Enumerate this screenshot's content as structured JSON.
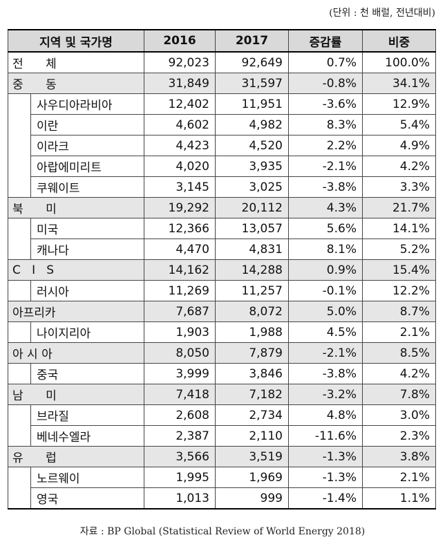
{
  "unit_note": "(단위 : 천 배럴, 전년대비)",
  "headers": [
    "지역 및 국가명",
    "2016",
    "2017",
    "증감률",
    "비중"
  ],
  "total": {
    "name": "전      체",
    "v2016": "92,023",
    "v2017": "92,649",
    "change": "0.7%",
    "share": "100.0%"
  },
  "regions": [
    {
      "name": "중      동",
      "v2016": "31,849",
      "v2017": "31,597",
      "change": "-0.8%",
      "share": "34.1%",
      "countries": [
        {
          "name": "사우디아라비아",
          "v2016": "12,402",
          "v2017": "11,951",
          "change": "-3.6%",
          "share": "12.9%"
        },
        {
          "name": "이란",
          "v2016": "4,602",
          "v2017": "4,982",
          "change": "8.3%",
          "share": "5.4%"
        },
        {
          "name": "이라크",
          "v2016": "4,423",
          "v2017": "4,520",
          "change": "2.2%",
          "share": "4.9%"
        },
        {
          "name": "아랍에미리트",
          "v2016": "4,020",
          "v2017": "3,935",
          "change": "-2.1%",
          "share": "4.2%"
        },
        {
          "name": "쿠웨이트",
          "v2016": "3,145",
          "v2017": "3,025",
          "change": "-3.8%",
          "share": "3.3%"
        }
      ]
    },
    {
      "name": "북      미",
      "v2016": "19,292",
      "v2017": "20,112",
      "change": "4.3%",
      "share": "21.7%",
      "countries": [
        {
          "name": "미국",
          "v2016": "12,366",
          "v2017": "13,057",
          "change": "5.6%",
          "share": "14.1%"
        },
        {
          "name": "캐나다",
          "v2016": "4,470",
          "v2017": "4,831",
          "change": "8.1%",
          "share": "5.2%"
        }
      ]
    },
    {
      "name": "C   I   S",
      "v2016": "14,162",
      "v2017": "14,288",
      "change": "0.9%",
      "share": "15.4%",
      "countries": [
        {
          "name": "러시아",
          "v2016": "11,269",
          "v2017": "11,257",
          "change": "-0.1%",
          "share": "12.2%"
        }
      ]
    },
    {
      "name": "아프리카",
      "v2016": "7,687",
      "v2017": "8,072",
      "change": "5.0%",
      "share": "8.7%",
      "countries": [
        {
          "name": "나이지리아",
          "v2016": "1,903",
          "v2017": "1,988",
          "change": "4.5%",
          "share": "2.1%"
        }
      ]
    },
    {
      "name": "아 시 아",
      "v2016": "8,050",
      "v2017": "7,879",
      "change": "-2.1%",
      "share": "8.5%",
      "countries": [
        {
          "name": "중국",
          "v2016": "3,999",
          "v2017": "3,846",
          "change": "-3.8%",
          "share": "4.2%"
        }
      ]
    },
    {
      "name": "남      미",
      "v2016": "7,418",
      "v2017": "7,182",
      "change": "-3.2%",
      "share": "7.8%",
      "countries": [
        {
          "name": "브라질",
          "v2016": "2,608",
          "v2017": "2,734",
          "change": "4.8%",
          "share": "3.0%"
        },
        {
          "name": "베네수엘라",
          "v2016": "2,387",
          "v2017": "2,110",
          "change": "-11.6%",
          "share": "2.3%"
        }
      ]
    },
    {
      "name": "유      럽",
      "v2016": "3,566",
      "v2017": "3,519",
      "change": "-1.3%",
      "share": "3.8%",
      "countries": [
        {
          "name": "노르웨이",
          "v2016": "1,995",
          "v2017": "1,969",
          "change": "-1.3%",
          "share": "2.1%"
        },
        {
          "name": "영국",
          "v2016": "1,013",
          "v2017": "999",
          "change": "-1.4%",
          "share": "1.1%"
        }
      ]
    }
  ],
  "source": "자료 : BP Global (Statistical Review of World Energy 2018)"
}
